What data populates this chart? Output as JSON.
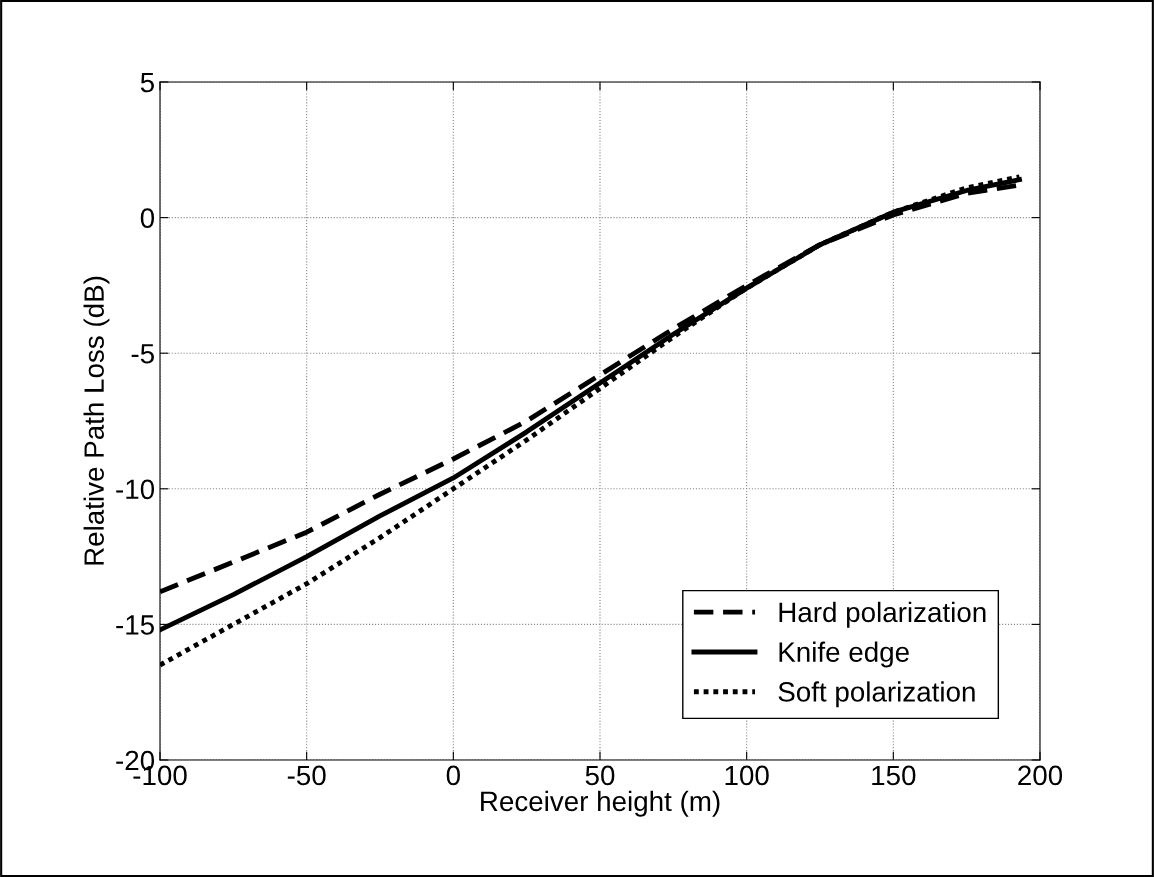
{
  "chart_data": {
    "type": "line",
    "xlabel": "Receiver height (m)",
    "ylabel": "Relative Path Loss (dB)",
    "x": [
      -100,
      -75,
      -50,
      -25,
      0,
      25,
      50,
      75,
      100,
      125,
      150,
      175,
      193
    ],
    "series": [
      {
        "name": "Hard polarization",
        "color": "#000000",
        "line_style": "dashed",
        "values": [
          -13.8,
          -12.7,
          -11.6,
          -10.2,
          -8.9,
          -7.5,
          -5.8,
          -4.1,
          -2.5,
          -1.0,
          0.1,
          0.9,
          1.2
        ]
      },
      {
        "name": "Knife edge",
        "color": "#000000",
        "line_style": "solid",
        "values": [
          -15.2,
          -13.9,
          -12.5,
          -11.0,
          -9.6,
          -7.9,
          -6.1,
          -4.3,
          -2.6,
          -1.0,
          0.2,
          1.0,
          1.4
        ]
      },
      {
        "name": "Soft polarization",
        "color": "#000000",
        "line_style": "dotted",
        "values": [
          -16.5,
          -15.0,
          -13.5,
          -11.8,
          -10.0,
          -8.2,
          -6.3,
          -4.4,
          -2.6,
          -1.0,
          0.2,
          1.1,
          1.5
        ]
      }
    ],
    "xlim": [
      -100,
      200
    ],
    "xticks": [
      -100,
      -50,
      0,
      50,
      100,
      150,
      200
    ],
    "ylim": [
      -20,
      5
    ],
    "yticks": [
      -20,
      -15,
      -10,
      -5,
      0,
      5
    ],
    "grid": true,
    "legend": "bottom right",
    "marker": "none"
  }
}
